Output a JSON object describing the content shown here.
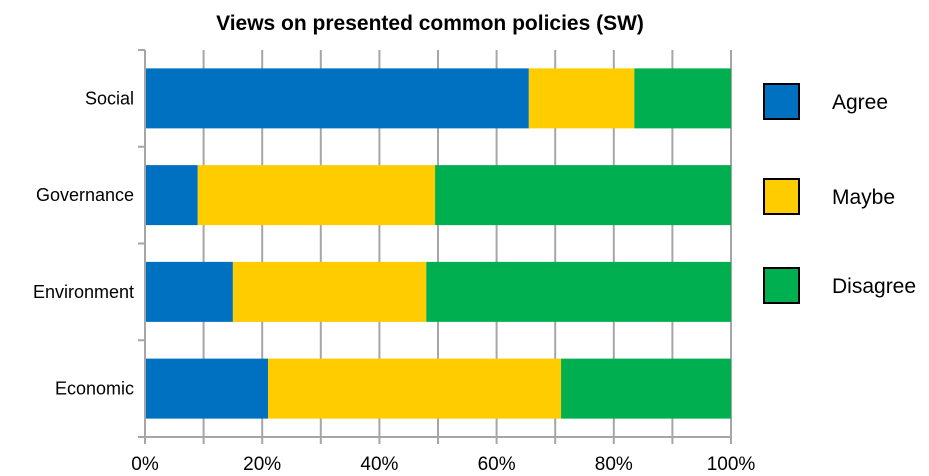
{
  "chart_data": {
    "type": "bar",
    "orientation": "horizontal",
    "stacked": true,
    "percent_stacked": true,
    "title": "Views on presented common policies (SW)",
    "categories": [
      "Social",
      "Governance",
      "Environment",
      "Economic"
    ],
    "series": [
      {
        "name": "Agree",
        "color": "#0070C0",
        "values": [
          65.5,
          9,
          15,
          21
        ]
      },
      {
        "name": "Maybe",
        "color": "#FFCC00",
        "values": [
          18,
          40.5,
          33,
          50
        ]
      },
      {
        "name": "Disagree",
        "color": "#00B050",
        "values": [
          16.5,
          50.5,
          52,
          29
        ]
      }
    ],
    "x_ticks": [
      "0%",
      "20%",
      "40%",
      "60%",
      "80%",
      "100%"
    ],
    "xlim": [
      0,
      100
    ],
    "grid": true,
    "legend_position": "right"
  }
}
